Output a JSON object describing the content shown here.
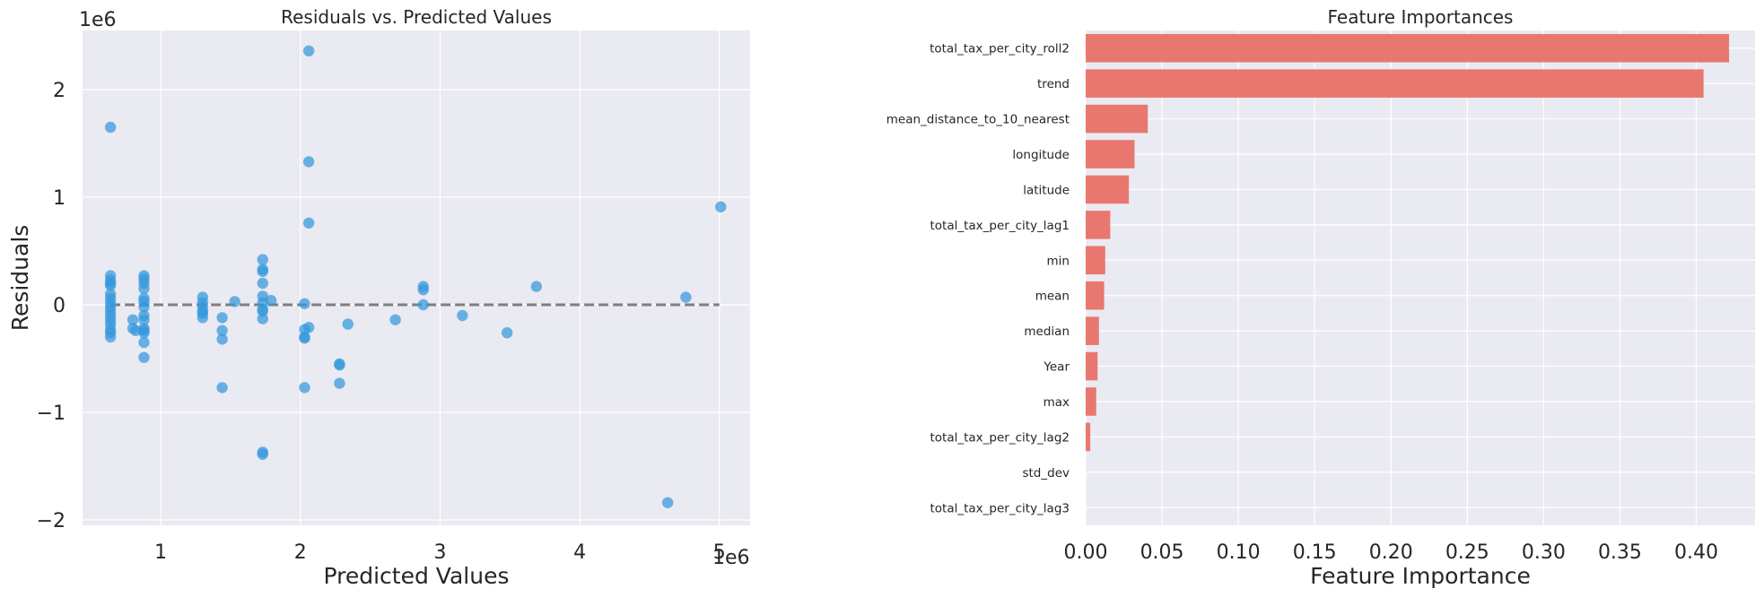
{
  "chart_data": [
    {
      "type": "scatter",
      "title": "Residuals vs. Predicted Values",
      "xlabel": "Predicted Values",
      "ylabel": "Residuals",
      "x_offset_label": "1e6",
      "y_offset_label": "1e6",
      "xlim": [
        440000,
        5220000
      ],
      "ylim": [
        -2050000,
        2550000
      ],
      "xticks": [
        1000000,
        2000000,
        3000000,
        4000000,
        5000000
      ],
      "xtick_labels": [
        "1",
        "2",
        "3",
        "4",
        "5"
      ],
      "yticks": [
        -2000000,
        -1000000,
        0,
        1000000,
        2000000
      ],
      "ytick_labels": [
        "−2",
        "−1",
        "0",
        "1",
        "2"
      ],
      "grid": true,
      "point_color": "#3498db",
      "reference_line": {
        "y": 0,
        "x_range": [
          640000,
          5000000
        ],
        "style": "dashed",
        "color": "#7f7f7f"
      },
      "points": [
        [
          640000,
          1650000
        ],
        [
          640000,
          270000
        ],
        [
          640000,
          230000
        ],
        [
          640000,
          200000
        ],
        [
          640000,
          180000
        ],
        [
          640000,
          100000
        ],
        [
          640000,
          60000
        ],
        [
          640000,
          20000
        ],
        [
          640000,
          -20000
        ],
        [
          640000,
          -60000
        ],
        [
          640000,
          -100000
        ],
        [
          640000,
          -140000
        ],
        [
          640000,
          -180000
        ],
        [
          640000,
          -230000
        ],
        [
          640000,
          -260000
        ],
        [
          640000,
          -300000
        ],
        [
          800000,
          -140000
        ],
        [
          800000,
          -220000
        ],
        [
          820000,
          -240000
        ],
        [
          880000,
          270000
        ],
        [
          880000,
          240000
        ],
        [
          880000,
          200000
        ],
        [
          880000,
          150000
        ],
        [
          880000,
          60000
        ],
        [
          880000,
          30000
        ],
        [
          880000,
          -20000
        ],
        [
          880000,
          -100000
        ],
        [
          880000,
          -140000
        ],
        [
          880000,
          -220000
        ],
        [
          880000,
          -240000
        ],
        [
          880000,
          -260000
        ],
        [
          880000,
          -350000
        ],
        [
          880000,
          -490000
        ],
        [
          1300000,
          70000
        ],
        [
          1300000,
          20000
        ],
        [
          1300000,
          -20000
        ],
        [
          1300000,
          -60000
        ],
        [
          1300000,
          -80000
        ],
        [
          1300000,
          -120000
        ],
        [
          1440000,
          -120000
        ],
        [
          1440000,
          -240000
        ],
        [
          1440000,
          -320000
        ],
        [
          1440000,
          -770000
        ],
        [
          1530000,
          30000
        ],
        [
          1730000,
          420000
        ],
        [
          1730000,
          330000
        ],
        [
          1730000,
          310000
        ],
        [
          1730000,
          200000
        ],
        [
          1730000,
          80000
        ],
        [
          1730000,
          20000
        ],
        [
          1730000,
          -40000
        ],
        [
          1730000,
          -60000
        ],
        [
          1730000,
          -130000
        ],
        [
          1730000,
          -1370000
        ],
        [
          1730000,
          -1390000
        ],
        [
          1790000,
          40000
        ],
        [
          2030000,
          10000
        ],
        [
          2030000,
          -230000
        ],
        [
          2030000,
          -300000
        ],
        [
          2030000,
          -310000
        ],
        [
          2030000,
          -770000
        ],
        [
          2060000,
          2360000
        ],
        [
          2060000,
          1330000
        ],
        [
          2060000,
          760000
        ],
        [
          2060000,
          -210000
        ],
        [
          2280000,
          -550000
        ],
        [
          2280000,
          -560000
        ],
        [
          2280000,
          -730000
        ],
        [
          2340000,
          -180000
        ],
        [
          2680000,
          -140000
        ],
        [
          2880000,
          170000
        ],
        [
          2880000,
          140000
        ],
        [
          2880000,
          0
        ],
        [
          3160000,
          -100000
        ],
        [
          3480000,
          -260000
        ],
        [
          3690000,
          170000
        ],
        [
          4630000,
          -1840000
        ],
        [
          4760000,
          70000
        ],
        [
          5010000,
          910000
        ]
      ]
    },
    {
      "type": "bar",
      "orientation": "horizontal",
      "title": "Feature Importances",
      "xlabel": "Feature Importance",
      "ylabel": "",
      "xlim": [
        0,
        0.4385
      ],
      "xticks": [
        0,
        0.05,
        0.1,
        0.15,
        0.2,
        0.25,
        0.3,
        0.35,
        0.4
      ],
      "xtick_labels": [
        "0.00",
        "0.05",
        "0.10",
        "0.15",
        "0.20",
        "0.25",
        "0.30",
        "0.35",
        "0.40"
      ],
      "grid": true,
      "bar_color": "#e8786f",
      "categories": [
        "total_tax_per_city_roll2",
        "trend",
        "mean_distance_to_10_nearest",
        "longitude",
        "latitude",
        "total_tax_per_city_lag1",
        "min",
        "mean",
        "median",
        "Year",
        "max",
        "total_tax_per_city_lag2",
        "std_dev",
        "total_tax_per_city_lag3"
      ],
      "values": [
        0.4215,
        0.4048,
        0.0407,
        0.032,
        0.0283,
        0.0161,
        0.0128,
        0.0121,
        0.0087,
        0.0078,
        0.0069,
        0.003,
        0.0,
        0.0
      ]
    }
  ]
}
